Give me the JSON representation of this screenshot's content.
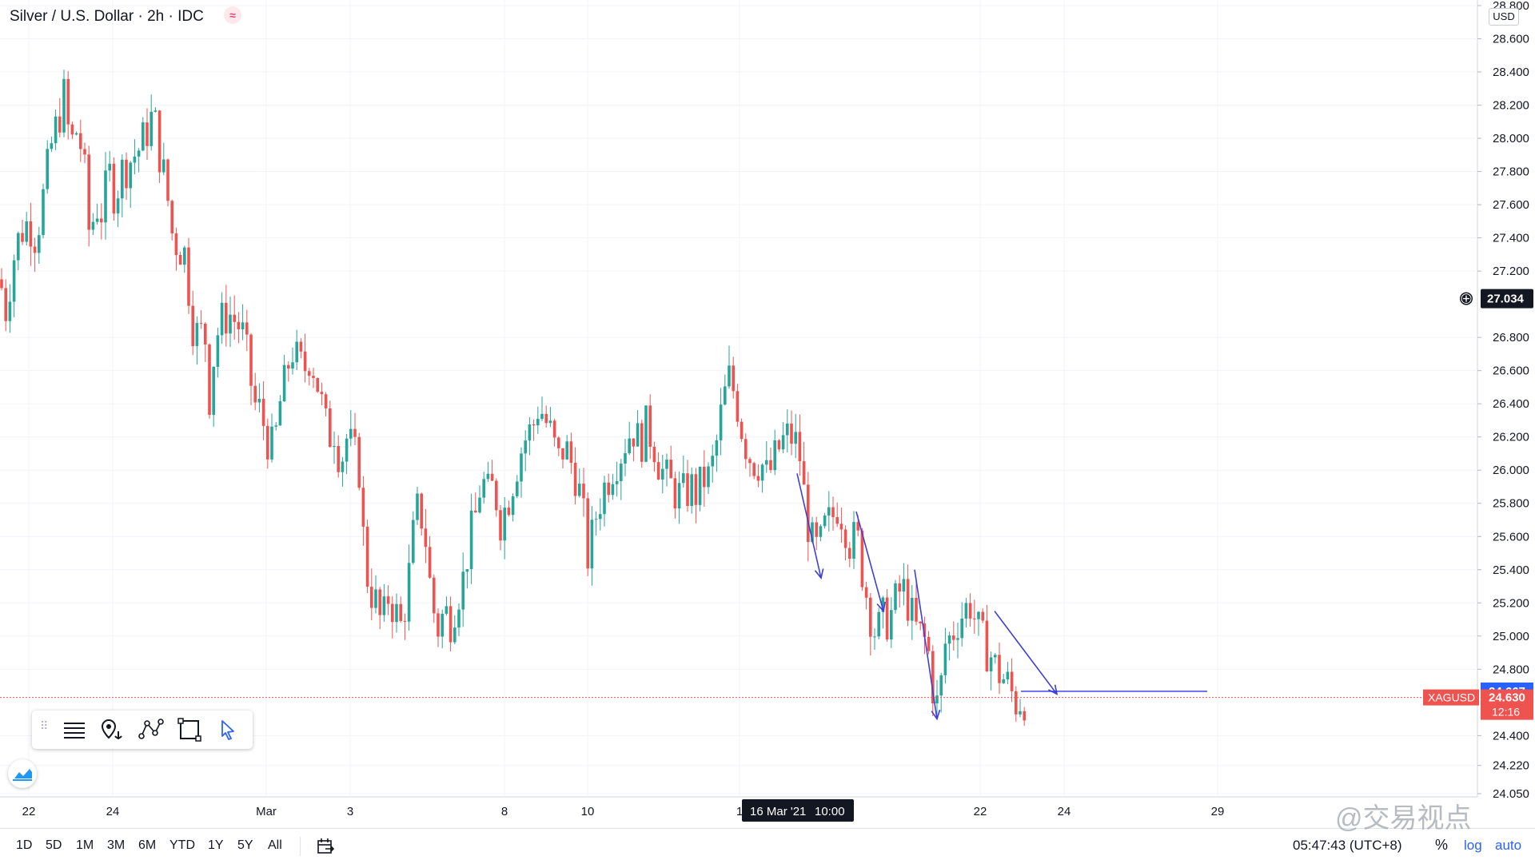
{
  "header": {
    "symbol_title": "Silver / U.S. Dollar · 2h · IDC",
    "status_icon": "≈",
    "currency": "USD"
  },
  "price_axis": {
    "ticks": [
      "28.800",
      "28.600",
      "28.400",
      "28.200",
      "28.000",
      "27.800",
      "27.600",
      "27.400",
      "27.200",
      "26.800",
      "26.600",
      "26.400",
      "26.200",
      "26.000",
      "25.800",
      "25.600",
      "25.400",
      "25.200",
      "25.000",
      "24.800",
      "24.400",
      "24.220",
      "24.050"
    ],
    "crosshair_price": "27.034",
    "badge_prev_close": "24.667",
    "badge_symbol": "XAGUSD",
    "badge_last_price": "24.630",
    "badge_countdown": "12:16"
  },
  "time_axis": {
    "labels": [
      "22",
      "24",
      "Mar",
      "3",
      "8",
      "10",
      "1",
      "22",
      "24",
      "29"
    ],
    "crosshair_time": "16 Mar '21",
    "crosshair_clock": "10:00"
  },
  "chart_data": {
    "type": "candlestick",
    "symbol": "XAGUSD",
    "interval": "2h",
    "ylim": [
      24.05,
      28.8
    ],
    "up_color": "#26a69a",
    "down_color": "#ef5350",
    "price_path": [
      [
        0,
        27.15
      ],
      [
        8,
        26.95
      ],
      [
        14,
        27.2
      ],
      [
        20,
        27.35
      ],
      [
        28,
        27.45
      ],
      [
        36,
        27.5
      ],
      [
        45,
        27.4
      ],
      [
        56,
        27.7
      ],
      [
        64,
        27.95
      ],
      [
        72,
        28.1
      ],
      [
        80,
        28.25
      ],
      [
        88,
        27.95
      ],
      [
        96,
        28.05
      ],
      [
        104,
        27.9
      ],
      [
        112,
        27.4
      ],
      [
        120,
        27.6
      ],
      [
        128,
        27.55
      ],
      [
        136,
        27.8
      ],
      [
        144,
        27.65
      ],
      [
        152,
        27.8
      ],
      [
        160,
        27.85
      ],
      [
        168,
        27.9
      ],
      [
        176,
        27.95
      ],
      [
        184,
        28.05
      ],
      [
        192,
        28.15
      ],
      [
        200,
        27.9
      ],
      [
        208,
        27.7
      ],
      [
        216,
        27.4
      ],
      [
        224,
        27.35
      ],
      [
        232,
        27.3
      ],
      [
        240,
        26.9
      ],
      [
        248,
        26.8
      ],
      [
        256,
        26.85
      ],
      [
        262,
        26.45
      ],
      [
        270,
        26.8
      ],
      [
        278,
        26.9
      ],
      [
        286,
        26.95
      ],
      [
        294,
        26.9
      ],
      [
        302,
        26.85
      ],
      [
        310,
        26.65
      ],
      [
        318,
        26.4
      ],
      [
        326,
        26.35
      ],
      [
        334,
        26.2
      ],
      [
        342,
        26.1
      ],
      [
        350,
        26.4
      ],
      [
        358,
        26.55
      ],
      [
        364,
        26.75
      ],
      [
        372,
        26.65
      ],
      [
        380,
        26.6
      ],
      [
        388,
        26.7
      ],
      [
        396,
        26.55
      ],
      [
        404,
        26.35
      ],
      [
        410,
        26.2
      ],
      [
        418,
        26.25
      ],
      [
        426,
        26.05
      ],
      [
        434,
        26.2
      ],
      [
        442,
        26.1
      ],
      [
        450,
        26.0
      ],
      [
        456,
        25.45
      ],
      [
        462,
        25.3
      ],
      [
        470,
        25.2
      ],
      [
        478,
        25.05
      ],
      [
        486,
        25.25
      ],
      [
        494,
        25.15
      ],
      [
        502,
        25.05
      ],
      [
        510,
        25.3
      ],
      [
        518,
        25.65
      ],
      [
        524,
        25.8
      ],
      [
        532,
        25.6
      ],
      [
        540,
        25.2
      ],
      [
        548,
        25.05
      ],
      [
        556,
        25.15
      ],
      [
        564,
        25.1
      ],
      [
        572,
        25.25
      ],
      [
        580,
        25.35
      ],
      [
        586,
        25.55
      ],
      [
        594,
        25.7
      ],
      [
        602,
        25.95
      ],
      [
        610,
        25.85
      ],
      [
        618,
        25.9
      ],
      [
        626,
        25.7
      ],
      [
        634,
        25.8
      ],
      [
        642,
        25.95
      ],
      [
        650,
        26.1
      ],
      [
        658,
        26.2
      ],
      [
        666,
        26.25
      ],
      [
        674,
        26.4
      ],
      [
        682,
        26.3
      ],
      [
        690,
        26.2
      ],
      [
        698,
        26.05
      ],
      [
        706,
        26.15
      ],
      [
        714,
        26.05
      ],
      [
        722,
        25.95
      ],
      [
        730,
        25.7
      ],
      [
        736,
        25.45
      ],
      [
        744,
        25.7
      ],
      [
        752,
        25.85
      ],
      [
        760,
        25.95
      ],
      [
        768,
        26.05
      ],
      [
        776,
        26.1
      ],
      [
        784,
        26.2
      ],
      [
        792,
        26.25
      ],
      [
        800,
        26.15
      ],
      [
        808,
        26.25
      ],
      [
        816,
        26.2
      ],
      [
        824,
        26.05
      ],
      [
        832,
        25.95
      ],
      [
        840,
        25.9
      ],
      [
        848,
        25.85
      ],
      [
        856,
        25.85
      ],
      [
        864,
        25.9
      ],
      [
        872,
        25.85
      ],
      [
        880,
        25.95
      ],
      [
        888,
        25.95
      ],
      [
        896,
        26.15
      ],
      [
        904,
        26.4
      ],
      [
        912,
        26.55
      ],
      [
        920,
        26.45
      ],
      [
        928,
        26.25
      ],
      [
        936,
        26.1
      ],
      [
        944,
        26.05
      ],
      [
        952,
        26.05
      ],
      [
        960,
        25.95
      ],
      [
        968,
        26.05
      ],
      [
        976,
        26.15
      ],
      [
        984,
        26.2
      ],
      [
        992,
        26.2
      ],
      [
        1000,
        26.1
      ],
      [
        1008,
        25.75
      ],
      [
        1016,
        25.55
      ],
      [
        1024,
        25.5
      ],
      [
        1032,
        25.65
      ],
      [
        1040,
        25.7
      ],
      [
        1048,
        25.8
      ],
      [
        1056,
        25.7
      ],
      [
        1064,
        25.55
      ],
      [
        1072,
        25.6
      ],
      [
        1080,
        25.35
      ],
      [
        1088,
        25.15
      ],
      [
        1096,
        25.0
      ],
      [
        1104,
        25.1
      ],
      [
        1112,
        25.1
      ],
      [
        1120,
        25.2
      ],
      [
        1128,
        25.3
      ],
      [
        1136,
        25.2
      ],
      [
        1144,
        25.05
      ],
      [
        1152,
        25.0
      ],
      [
        1160,
        24.95
      ],
      [
        1168,
        24.65
      ],
      [
        1174,
        24.55
      ],
      [
        1182,
        24.95
      ],
      [
        1190,
        25.0
      ],
      [
        1198,
        25.1
      ],
      [
        1206,
        25.15
      ],
      [
        1214,
        25.2
      ],
      [
        1222,
        25.05
      ],
      [
        1230,
        24.95
      ],
      [
        1238,
        24.9
      ],
      [
        1246,
        24.8
      ],
      [
        1254,
        24.75
      ],
      [
        1262,
        24.7
      ],
      [
        1270,
        24.6
      ],
      [
        1278,
        24.62
      ],
      [
        1286,
        24.63
      ]
    ],
    "drawings": {
      "arrows": [
        {
          "from": [
            997,
            25.98
          ],
          "to": [
            1027,
            25.35
          ]
        },
        {
          "from": [
            1071,
            25.75
          ],
          "to": [
            1105,
            25.15
          ]
        },
        {
          "from": [
            1144,
            25.4
          ],
          "to": [
            1172,
            24.5
          ]
        },
        {
          "from": [
            1244,
            25.15
          ],
          "to": [
            1322,
            24.65
          ]
        }
      ],
      "horizontal_line": {
        "from_x": 1277,
        "to_x": 1510,
        "price": 24.667
      }
    }
  },
  "drawing_toolbar": {
    "tools": [
      "lines-icon",
      "pin-anchor-icon",
      "pattern-icon",
      "rectangle-icon",
      "cursor-icon"
    ]
  },
  "bottom_bar": {
    "ranges": [
      "1D",
      "5D",
      "1M",
      "3M",
      "6M",
      "YTD",
      "1Y",
      "5Y",
      "All"
    ],
    "clock": "05:47:43 (UTC+8)",
    "percent_label": "%",
    "log_label": "log",
    "auto_label": "auto"
  },
  "watermark": "@交易视点"
}
